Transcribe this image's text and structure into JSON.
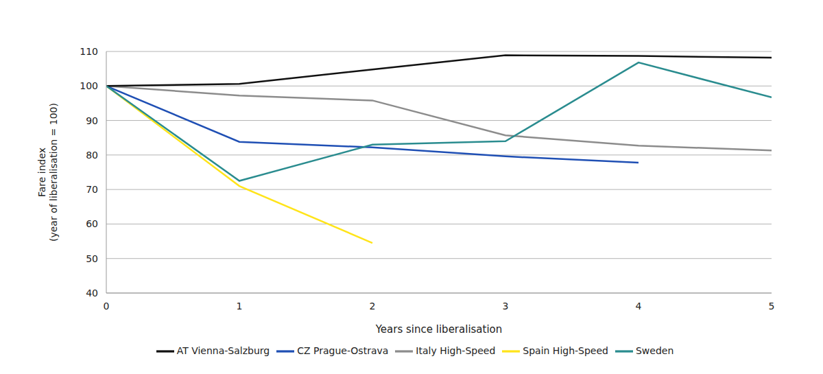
{
  "chart_data": {
    "type": "line",
    "xlabel": "Years since liberalisation",
    "ylabel": "Fare index\n(year of liberalisation = 100)",
    "x": [
      0,
      1,
      2,
      3,
      4,
      5
    ],
    "xlim": [
      0,
      5
    ],
    "xticks": [
      0,
      1,
      2,
      3,
      4,
      5
    ],
    "ylim": [
      40,
      110
    ],
    "yticks": [
      40,
      50,
      60,
      70,
      80,
      90,
      100,
      110
    ],
    "grid": true,
    "legend": "bottom",
    "series": [
      {
        "name": "Spain High-Speed",
        "color": "#ffe41a",
        "values": [
          100,
          71,
          54.5,
          null,
          null,
          null
        ]
      },
      {
        "name": "Italy High-Speed",
        "color": "#8c8c8c",
        "values": [
          100,
          97.2,
          95.8,
          85.7,
          82.7,
          81.3
        ]
      },
      {
        "name": "CZ Prague-Ostrava",
        "color": "#1f4fb4",
        "values": [
          100,
          83.8,
          82.2,
          79.6,
          77.8,
          null
        ]
      },
      {
        "name": "AT Vienna-Salzburg",
        "color": "#111111",
        "values": [
          100,
          100.6,
          104.8,
          108.9,
          108.7,
          108.2
        ]
      },
      {
        "name": "Sweden",
        "color": "#2a8c8f",
        "values": [
          100,
          72.5,
          83,
          84,
          106.8,
          96.7
        ]
      }
    ]
  }
}
